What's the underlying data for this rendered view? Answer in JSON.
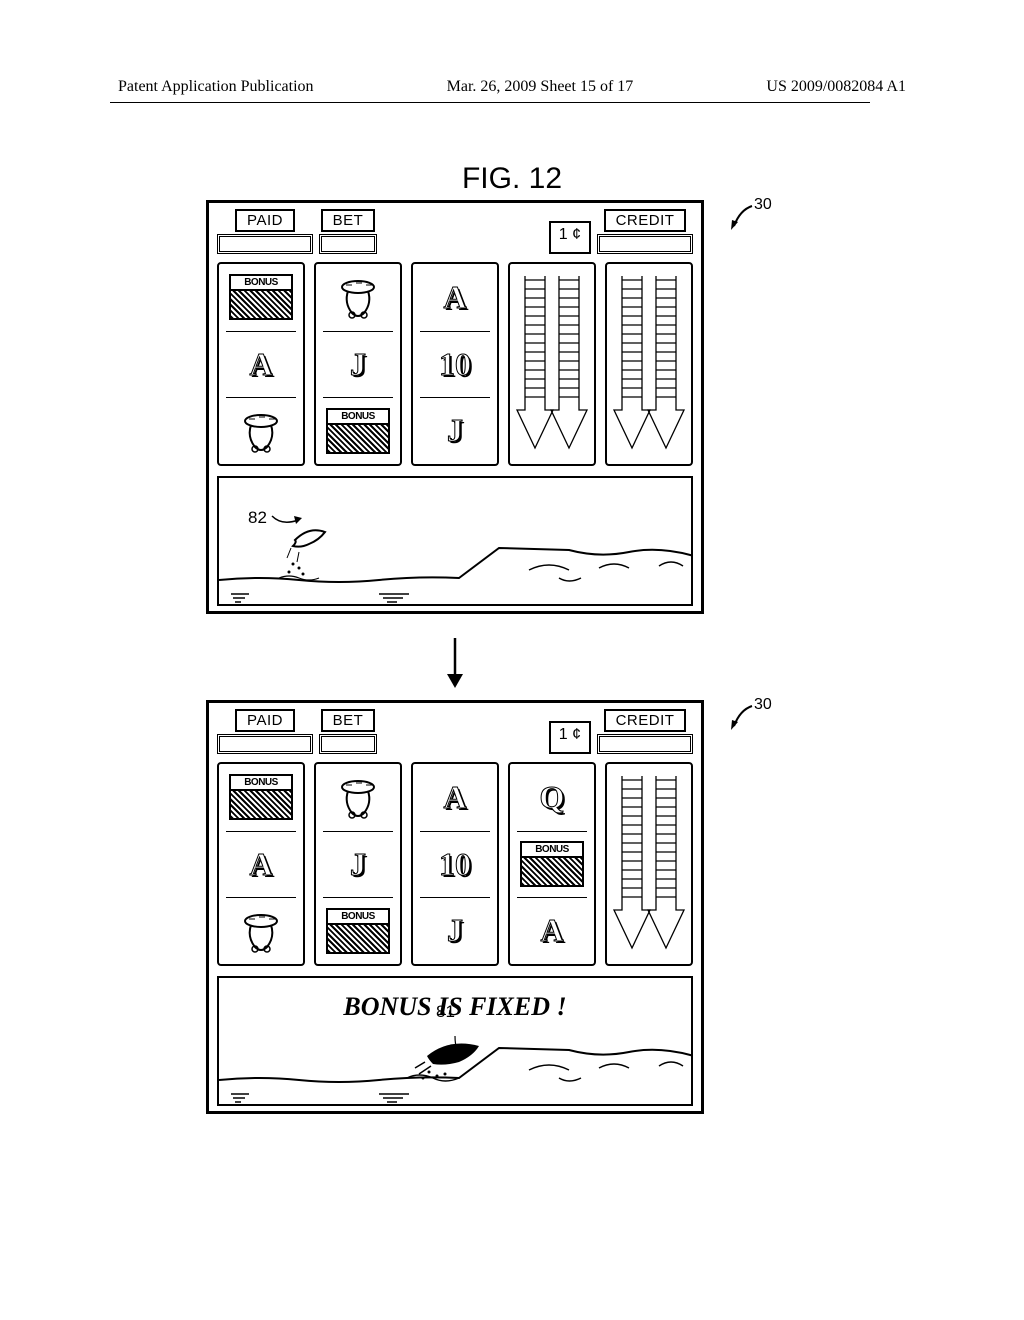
{
  "header": {
    "left": "Patent Application Publication",
    "middle": "Mar. 26, 2009  Sheet 15 of 17",
    "right": "US 2009/0082084 A1"
  },
  "figure_title": "FIG. 12",
  "info": {
    "paid": "PAID",
    "bet": "BET",
    "credit": "CREDIT",
    "denom": "1 ¢"
  },
  "screen_ref": "30",
  "ref_82": "82",
  "ref_81": "81",
  "bonus_message": "BONUS IS FIXED !",
  "symbols": {
    "bonus": "BONUS",
    "A": "A",
    "J": "J",
    "Q": "Q",
    "ten": "10"
  },
  "reels_screen1": [
    [
      "bonus",
      "A",
      "fruit"
    ],
    [
      "fruit",
      "J",
      "bonus"
    ],
    [
      "A",
      "ten",
      "J"
    ],
    [
      "spin",
      "spin",
      "spin"
    ],
    [
      "spin",
      "spin",
      "spin"
    ]
  ],
  "reels_screen2": [
    [
      "bonus",
      "A",
      "fruit"
    ],
    [
      "fruit",
      "J",
      "bonus"
    ],
    [
      "A",
      "ten",
      "J"
    ],
    [
      "Q",
      "bonus",
      "A"
    ],
    [
      "spin",
      "spin",
      "spin"
    ]
  ],
  "colors": {
    "stroke": "#000000",
    "bg": "#ffffff"
  }
}
